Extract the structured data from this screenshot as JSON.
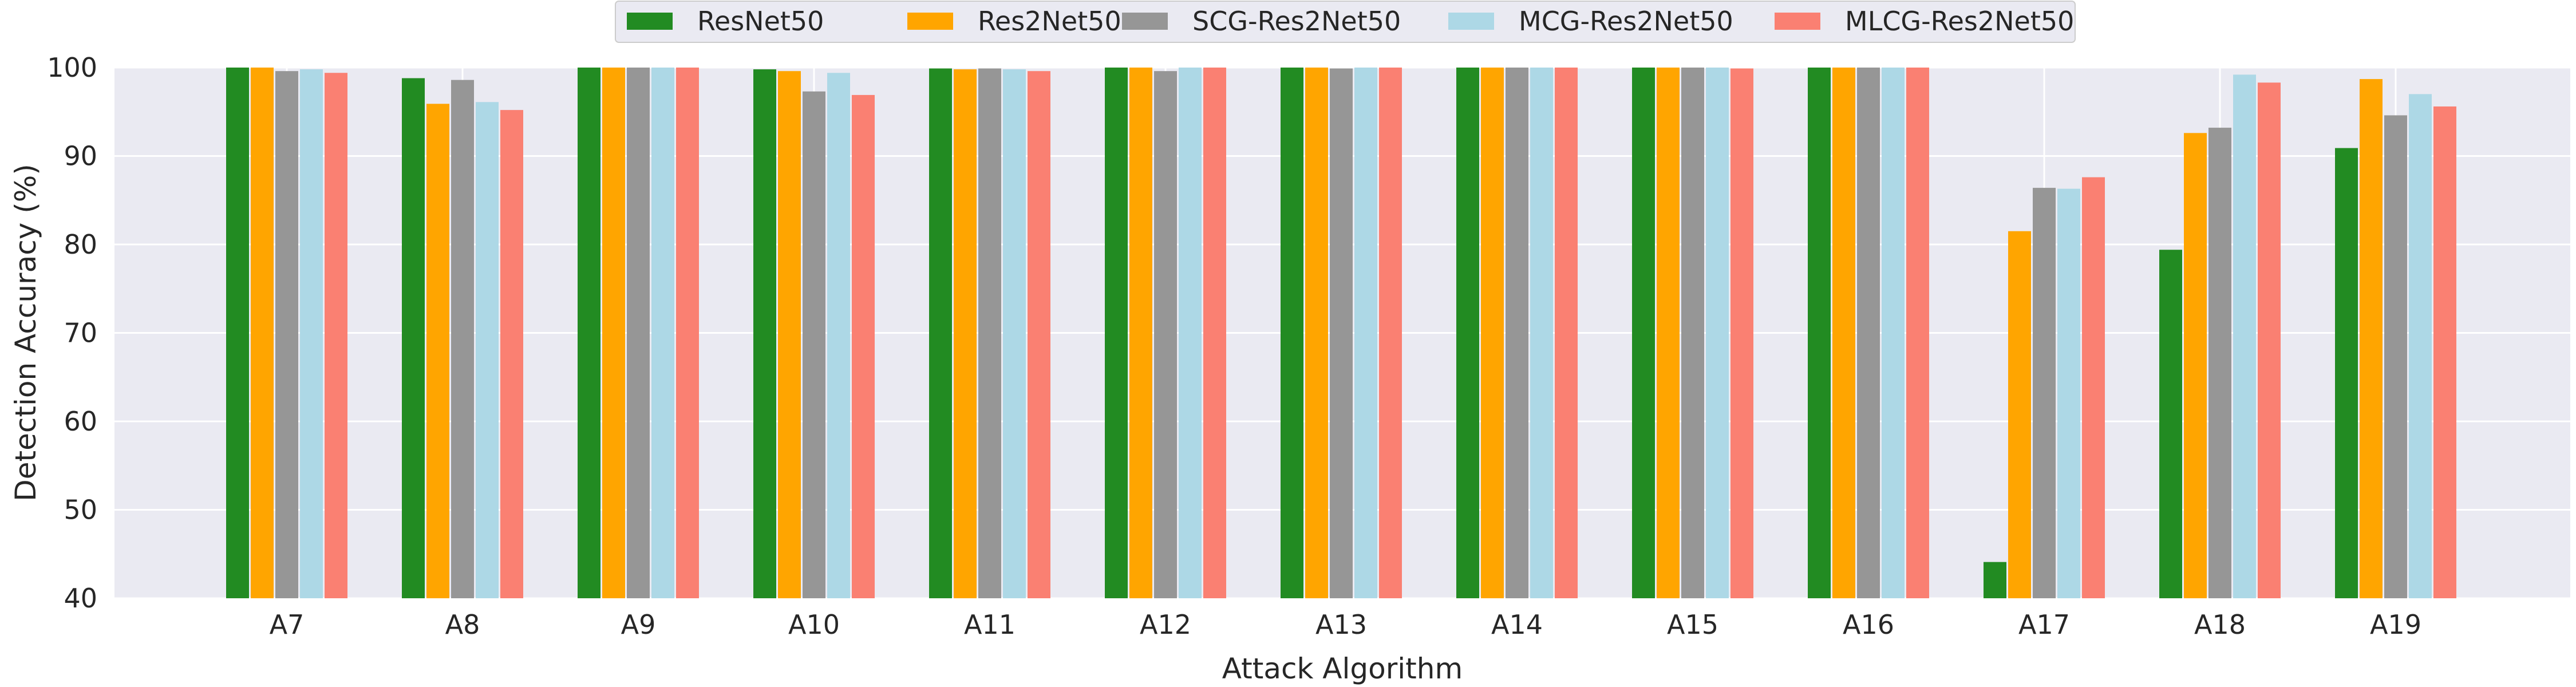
{
  "chart_data": {
    "type": "bar",
    "title": "",
    "xlabel": "Attack Algorithm",
    "ylabel": "Detection Accuracy (%)",
    "ylim": [
      40,
      100
    ],
    "yticks": [
      40,
      50,
      60,
      70,
      80,
      90,
      100
    ],
    "grid": true,
    "legend_position": "top-center",
    "categories": [
      "A7",
      "A8",
      "A9",
      "A10",
      "A11",
      "A12",
      "A13",
      "A14",
      "A15",
      "A16",
      "A17",
      "A18",
      "A19"
    ],
    "series": [
      {
        "name": "ResNet50",
        "color": "#228b22",
        "values": [
          100.0,
          98.8,
          100.0,
          99.8,
          99.9,
          100.0,
          100.0,
          100.0,
          100.0,
          100.0,
          44.1,
          79.4,
          90.9
        ]
      },
      {
        "name": "Res2Net50",
        "color": "#ffa500",
        "values": [
          100.0,
          95.9,
          100.0,
          99.6,
          99.8,
          100.0,
          100.0,
          100.0,
          100.0,
          100.0,
          81.5,
          92.6,
          98.7
        ]
      },
      {
        "name": "SCG-Res2Net50",
        "color": "#969696",
        "values": [
          99.6,
          98.6,
          100.0,
          97.3,
          99.9,
          99.6,
          99.9,
          100.0,
          100.0,
          100.0,
          86.4,
          93.2,
          94.6
        ]
      },
      {
        "name": "MCG-Res2Net50",
        "color": "#add8e6",
        "values": [
          99.8,
          96.1,
          100.0,
          99.4,
          99.8,
          100.0,
          100.0,
          100.0,
          100.0,
          100.0,
          86.3,
          99.2,
          97.0
        ]
      },
      {
        "name": "MLCG-Res2Net50",
        "color": "#fa8072",
        "values": [
          99.4,
          95.2,
          100.0,
          96.9,
          99.6,
          100.0,
          100.0,
          100.0,
          99.9,
          100.0,
          87.6,
          98.3,
          95.6
        ]
      }
    ]
  }
}
